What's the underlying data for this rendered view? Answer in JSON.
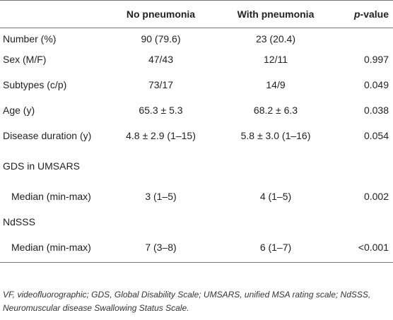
{
  "table": {
    "headers": [
      "",
      "No pneumonia",
      "With pneumonia",
      "p",
      "-value"
    ],
    "rows": [
      {
        "label": "Number (%)",
        "no": "90 (79.6)",
        "with": "23 (20.4)",
        "p": ""
      },
      {
        "label": "Sex (M/F)",
        "no": "47/43",
        "with": "12/11",
        "p": "0.997"
      },
      {
        "label": "Subtypes (c/p)",
        "no": "73/17",
        "with": "14/9",
        "p": "0.049"
      },
      {
        "label": "Age (y)",
        "no": "65.3 ± 5.3",
        "with": "68.2 ± 6.3",
        "p": "0.038"
      },
      {
        "label": "Disease duration (y)",
        "no": "4.8 ± 2.9 (1–15)",
        "with": "5.8 ± 3.0 (1–16)",
        "p": "0.054"
      },
      {
        "label": "GDS in UMSARS",
        "no": "",
        "with": "",
        "p": ""
      },
      {
        "label": "Median (min-max)",
        "no": "3 (1–5)",
        "with": "4 (1–5)",
        "p": "0.002"
      },
      {
        "label": "NdSSS",
        "no": "",
        "with": "",
        "p": ""
      },
      {
        "label": "Median (min-max)",
        "no": "7 (3–8)",
        "with": "6 (1–7)",
        "p": "<0.001"
      }
    ]
  },
  "footnote": "VF, videofluorographic; GDS, Global Disability Scale; UMSARS, unified MSA rating scale; NdSSS, Neuromuscular disease Swallowing Status Scale."
}
